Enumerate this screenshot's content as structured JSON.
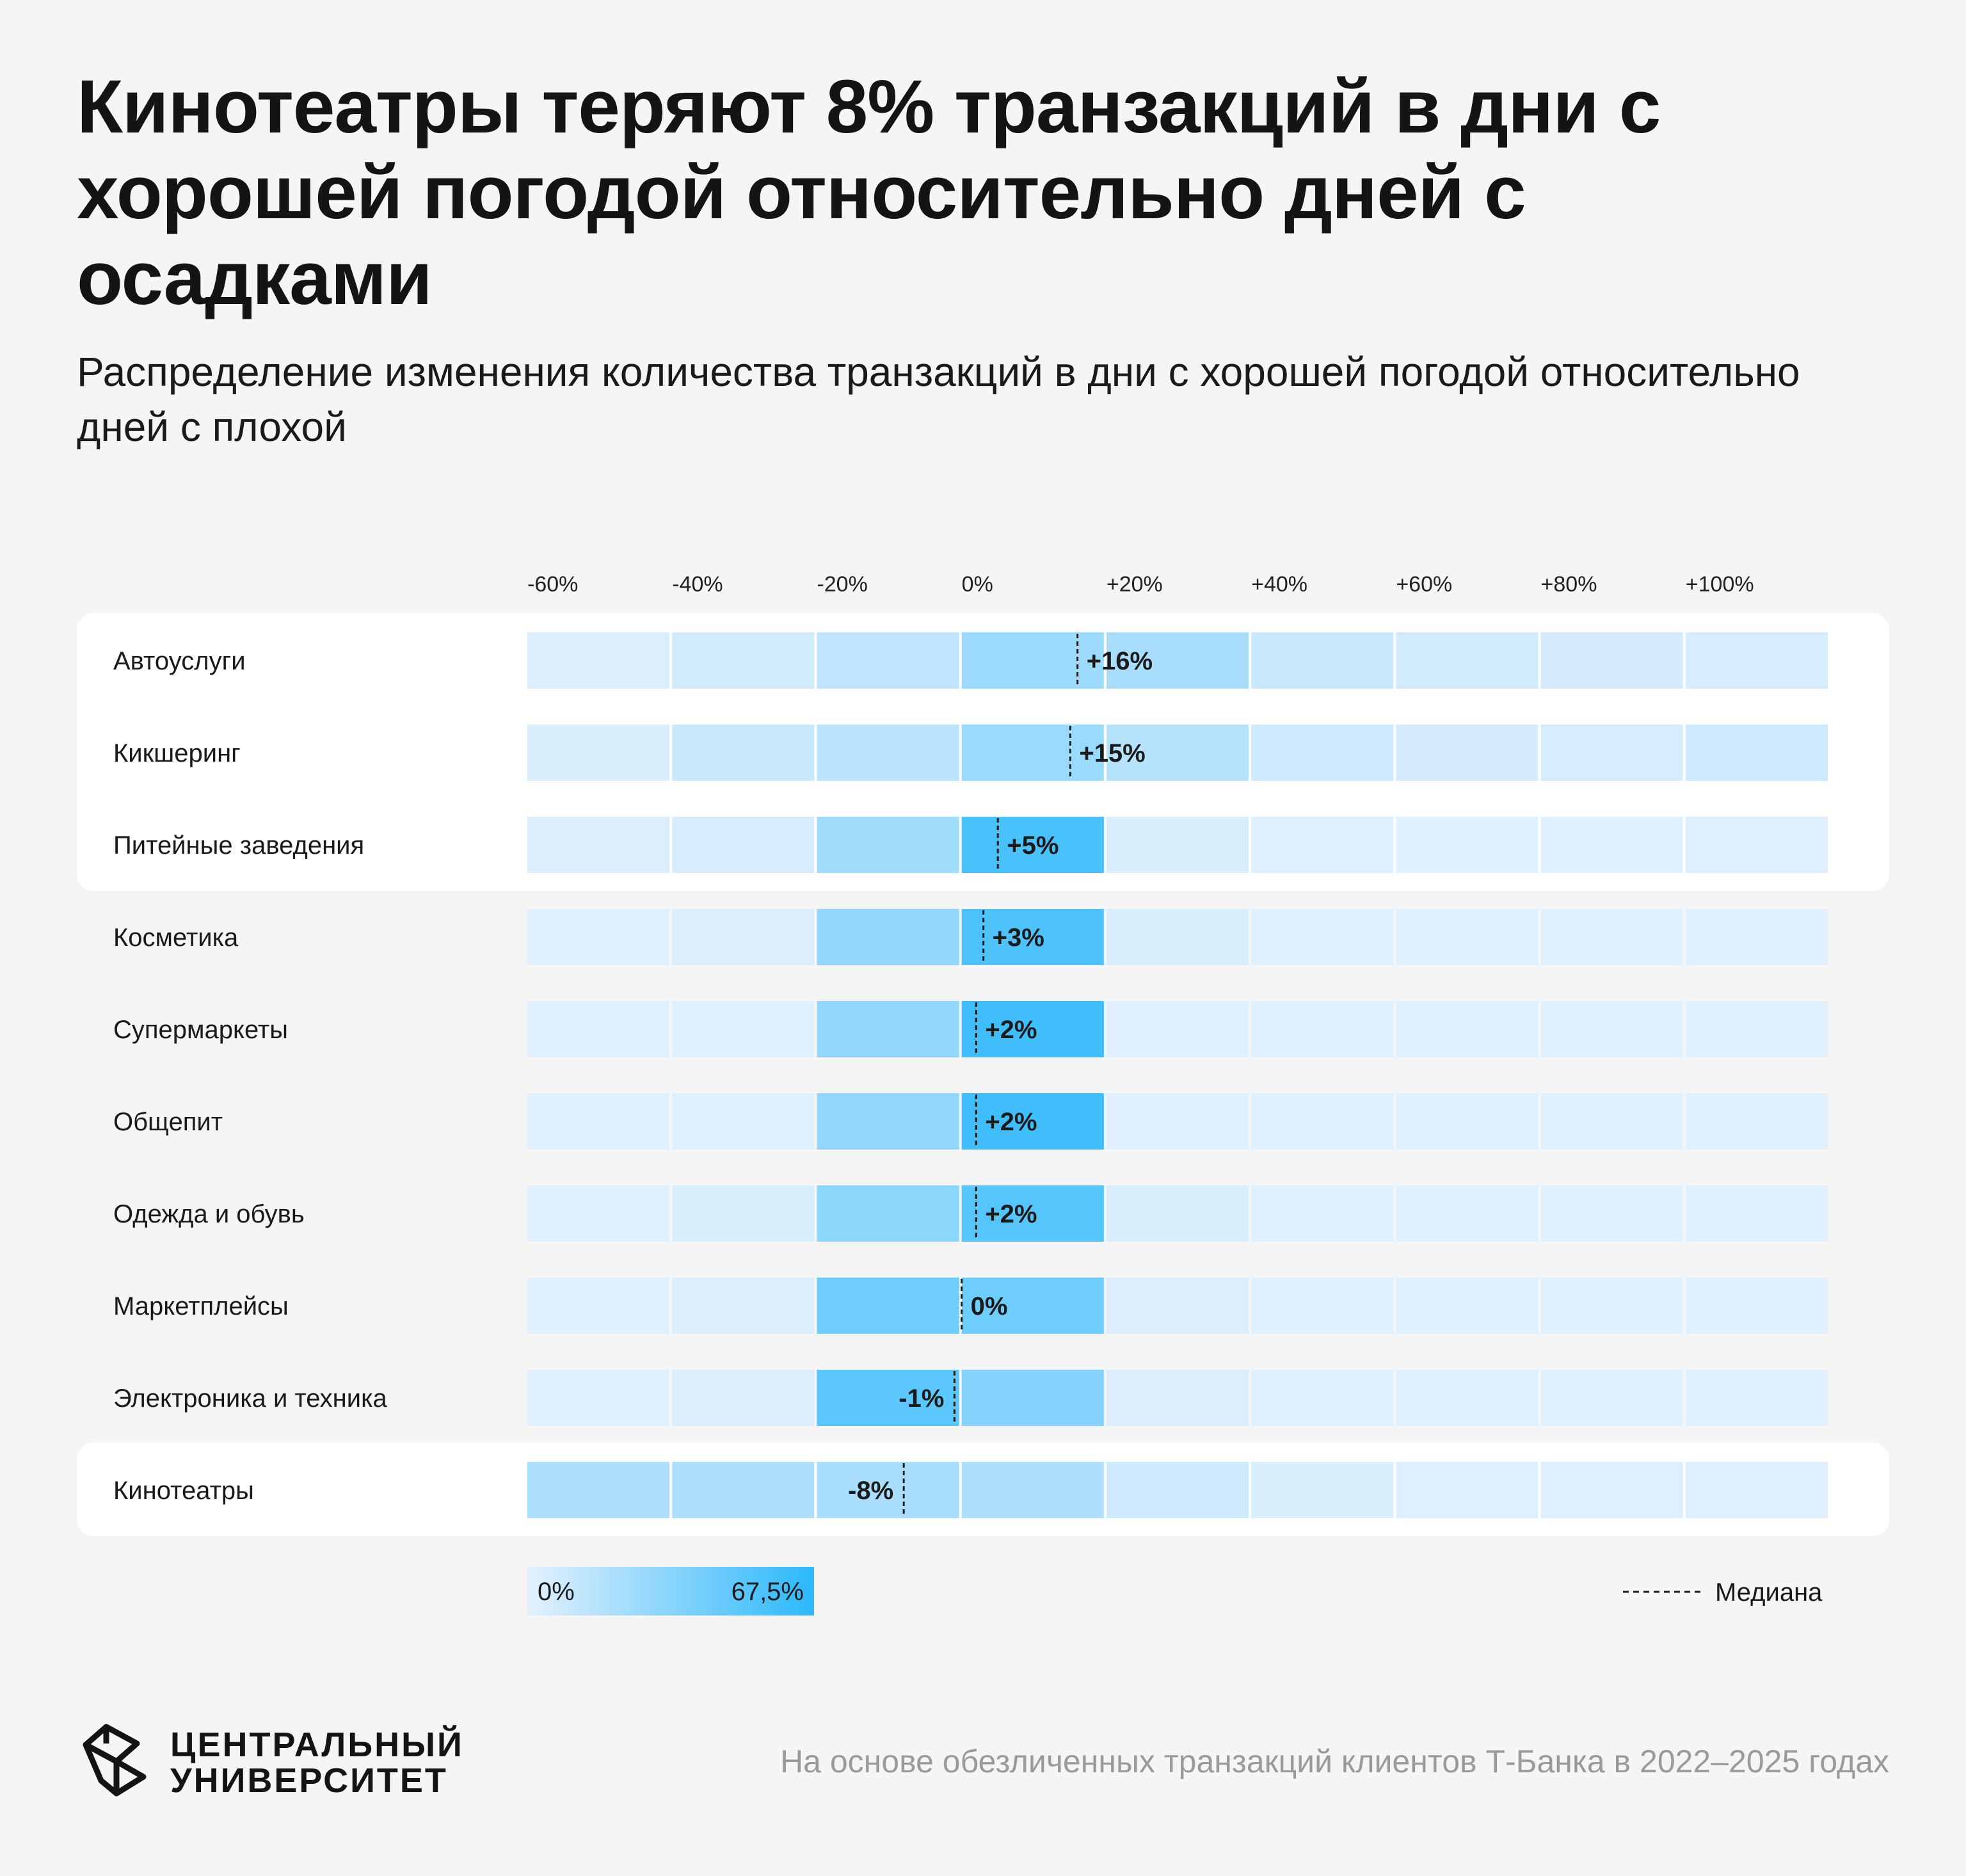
{
  "header": {
    "title": "Кинотеатры теряют 8% транзакций в дни с хорошей погодой относительно дней с осадками",
    "subtitle": "Распределение изменения количества транзакций в дни с хорошей погодой относительно дней с плохой"
  },
  "chart_data": {
    "type": "heatmap",
    "title": "Кинотеатры теряют 8% транзакций в дни с хорошей погодой относительно дней с осадками",
    "subtitle": "Распределение изменения количества транзакций в дни с хорошей погодой относительно дней с плохой",
    "x_ticks": [
      "-60%",
      "-40%",
      "-20%",
      "0%",
      "+20%",
      "+40%",
      "+60%",
      "+80%",
      "+100%"
    ],
    "bin_edges": [
      -60,
      -40,
      -20,
      0,
      20,
      40,
      60,
      80,
      100,
      120
    ],
    "xlim": [
      -60,
      120
    ],
    "color_scale": {
      "min": 0,
      "max": 67.5,
      "min_label": "0%",
      "max_label": "67,5%",
      "min_color": "#e4f1fd",
      "max_color": "#2cb8fb"
    },
    "median_legend": "Медиана",
    "highlighted_groups": [
      [
        0,
        2
      ],
      [
        9,
        9
      ]
    ],
    "rows": [
      {
        "category": "Автоуслуги",
        "median": 16,
        "median_label": "+16%",
        "shares": [
          3,
          7,
          14,
          26,
          22,
          10,
          7,
          6,
          5
        ]
      },
      {
        "category": "Кикшеринг",
        "median": 15,
        "median_label": "+15%",
        "shares": [
          4,
          10,
          15,
          27,
          17,
          8,
          6,
          5,
          8
        ]
      },
      {
        "category": "Питейные заведения",
        "median": 5,
        "median_label": "+5%",
        "shares": [
          3,
          5,
          25,
          57,
          4,
          2,
          1,
          1,
          2
        ]
      },
      {
        "category": "Косметика",
        "median": 3,
        "median_label": "+3%",
        "shares": [
          2,
          3,
          30,
          55,
          4,
          2,
          1,
          1,
          2
        ]
      },
      {
        "category": "Супермаркеты",
        "median": 2,
        "median_label": "+2%",
        "shares": [
          2,
          2,
          30,
          60,
          2,
          1,
          1,
          1,
          1
        ]
      },
      {
        "category": "Общепит",
        "median": 2,
        "median_label": "+2%",
        "shares": [
          2,
          2,
          30,
          60,
          2,
          1,
          1,
          1,
          1
        ]
      },
      {
        "category": "Одежда и обувь",
        "median": 2,
        "median_label": "+2%",
        "shares": [
          2,
          4,
          32,
          52,
          4,
          2,
          1,
          1,
          2
        ]
      },
      {
        "category": "Маркетплейсы",
        "median": 0,
        "median_label": "0%",
        "shares": [
          2,
          3,
          43,
          43,
          3,
          2,
          1,
          1,
          2
        ]
      },
      {
        "category": "Электроника и техника",
        "median": -1,
        "median_label": "-1%",
        "shares": [
          2,
          3,
          50,
          35,
          3,
          2,
          1,
          1,
          2
        ]
      },
      {
        "category": "Кинотеатры",
        "median": -8,
        "median_label": "-8%",
        "shares": [
          20,
          20,
          22,
          20,
          8,
          4,
          2,
          2,
          2
        ]
      }
    ]
  },
  "logo": {
    "line1": "ЦЕНТРАЛЬНЫЙ",
    "line2": "УНИВЕРСИТЕТ",
    "icon": "cube-logo-icon"
  },
  "footer": {
    "source": "На основе обезличенных транзакций клиентов Т-Банка в 2022–2025 годах"
  }
}
